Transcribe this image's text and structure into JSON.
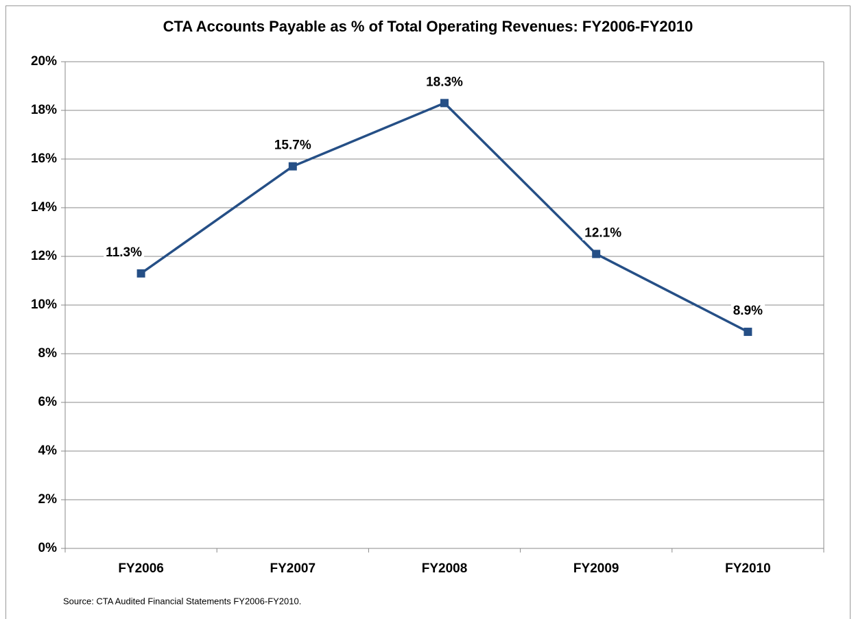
{
  "chart_data": {
    "type": "line",
    "title": "CTA  Accounts Payable as % of Total Operating Revenues: FY2006-FY2010",
    "categories": [
      "FY2006",
      "FY2007",
      "FY2008",
      "FY2009",
      "FY2010"
    ],
    "series": [
      {
        "name": "Accounts Payable as % of Total Operating Revenues",
        "color": "#254f86",
        "values": [
          11.3,
          15.7,
          18.3,
          12.1,
          8.9
        ],
        "value_labels": [
          "11.3%",
          "15.7%",
          "18.3%",
          "12.1%",
          "8.9%"
        ]
      }
    ],
    "ylim": [
      0,
      20
    ],
    "yticks": [
      {
        "value": 0,
        "label": "0%"
      },
      {
        "value": 2,
        "label": "2%"
      },
      {
        "value": 4,
        "label": "4%"
      },
      {
        "value": 6,
        "label": "6%"
      },
      {
        "value": 8,
        "label": "8%"
      },
      {
        "value": 10,
        "label": "10%"
      },
      {
        "value": 12,
        "label": "12%"
      },
      {
        "value": 14,
        "label": "14%"
      },
      {
        "value": 16,
        "label": "16%"
      },
      {
        "value": 18,
        "label": "18%"
      },
      {
        "value": 20,
        "label": "20%"
      }
    ],
    "grid": true,
    "source": "Source: CTA Audited Financial Statements FY2006-FY2010."
  }
}
